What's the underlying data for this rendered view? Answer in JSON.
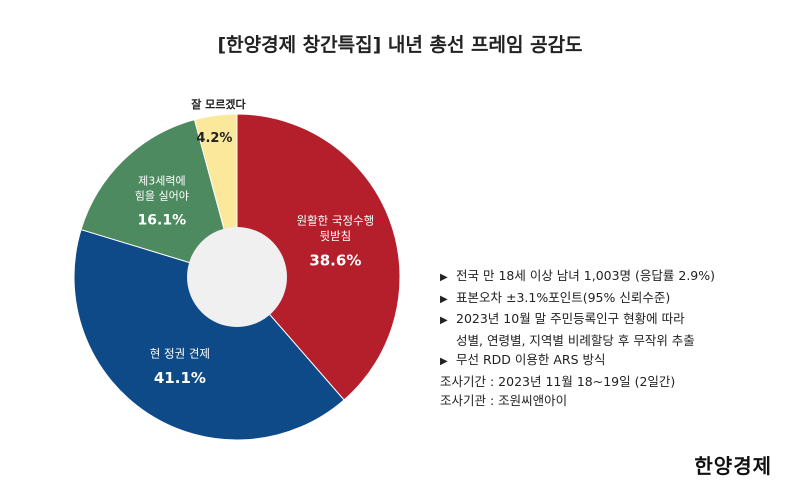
{
  "title": "[한양경제 창간특집] 내년 총선 프레임 공감도",
  "chart_data": {
    "type": "pie",
    "slices": [
      {
        "label": [
          "원활한 국정수행",
          "뒷받침"
        ],
        "value": 38.6,
        "value_label": "38.6%",
        "color": "#b51f2b"
      },
      {
        "label": [
          "현 정권 견제"
        ],
        "value": 41.1,
        "value_label": "41.1%",
        "color": "#0d4a87"
      },
      {
        "label": [
          "제3세력에",
          "힘을 실어야"
        ],
        "value": 16.1,
        "value_label": "16.1%",
        "color": "#4e8a5f"
      },
      {
        "label": [
          "잘 모르겠다"
        ],
        "value": 4.2,
        "value_label": "4.2%",
        "color": "#fbe89a"
      }
    ]
  },
  "notes": {
    "bullets": [
      "전국 만 18세 이상 남녀 1,003명 (응답률 2.9%)",
      "표본오차 ±3.1%포인트(95% 신뢰수준)",
      "2023년 10월 말 주민등록인구 현황에 따라",
      "무선 RDD 이용한 ARS 방식"
    ],
    "bullet3_cont": "성별, 연령별, 지역별 비례할당 후 무작위 추출",
    "period": "조사기간 : 2023년 11월 18~19일 (2일간)",
    "agency": "조사기관 : 조원씨앤아이"
  },
  "brand": "한양경제"
}
